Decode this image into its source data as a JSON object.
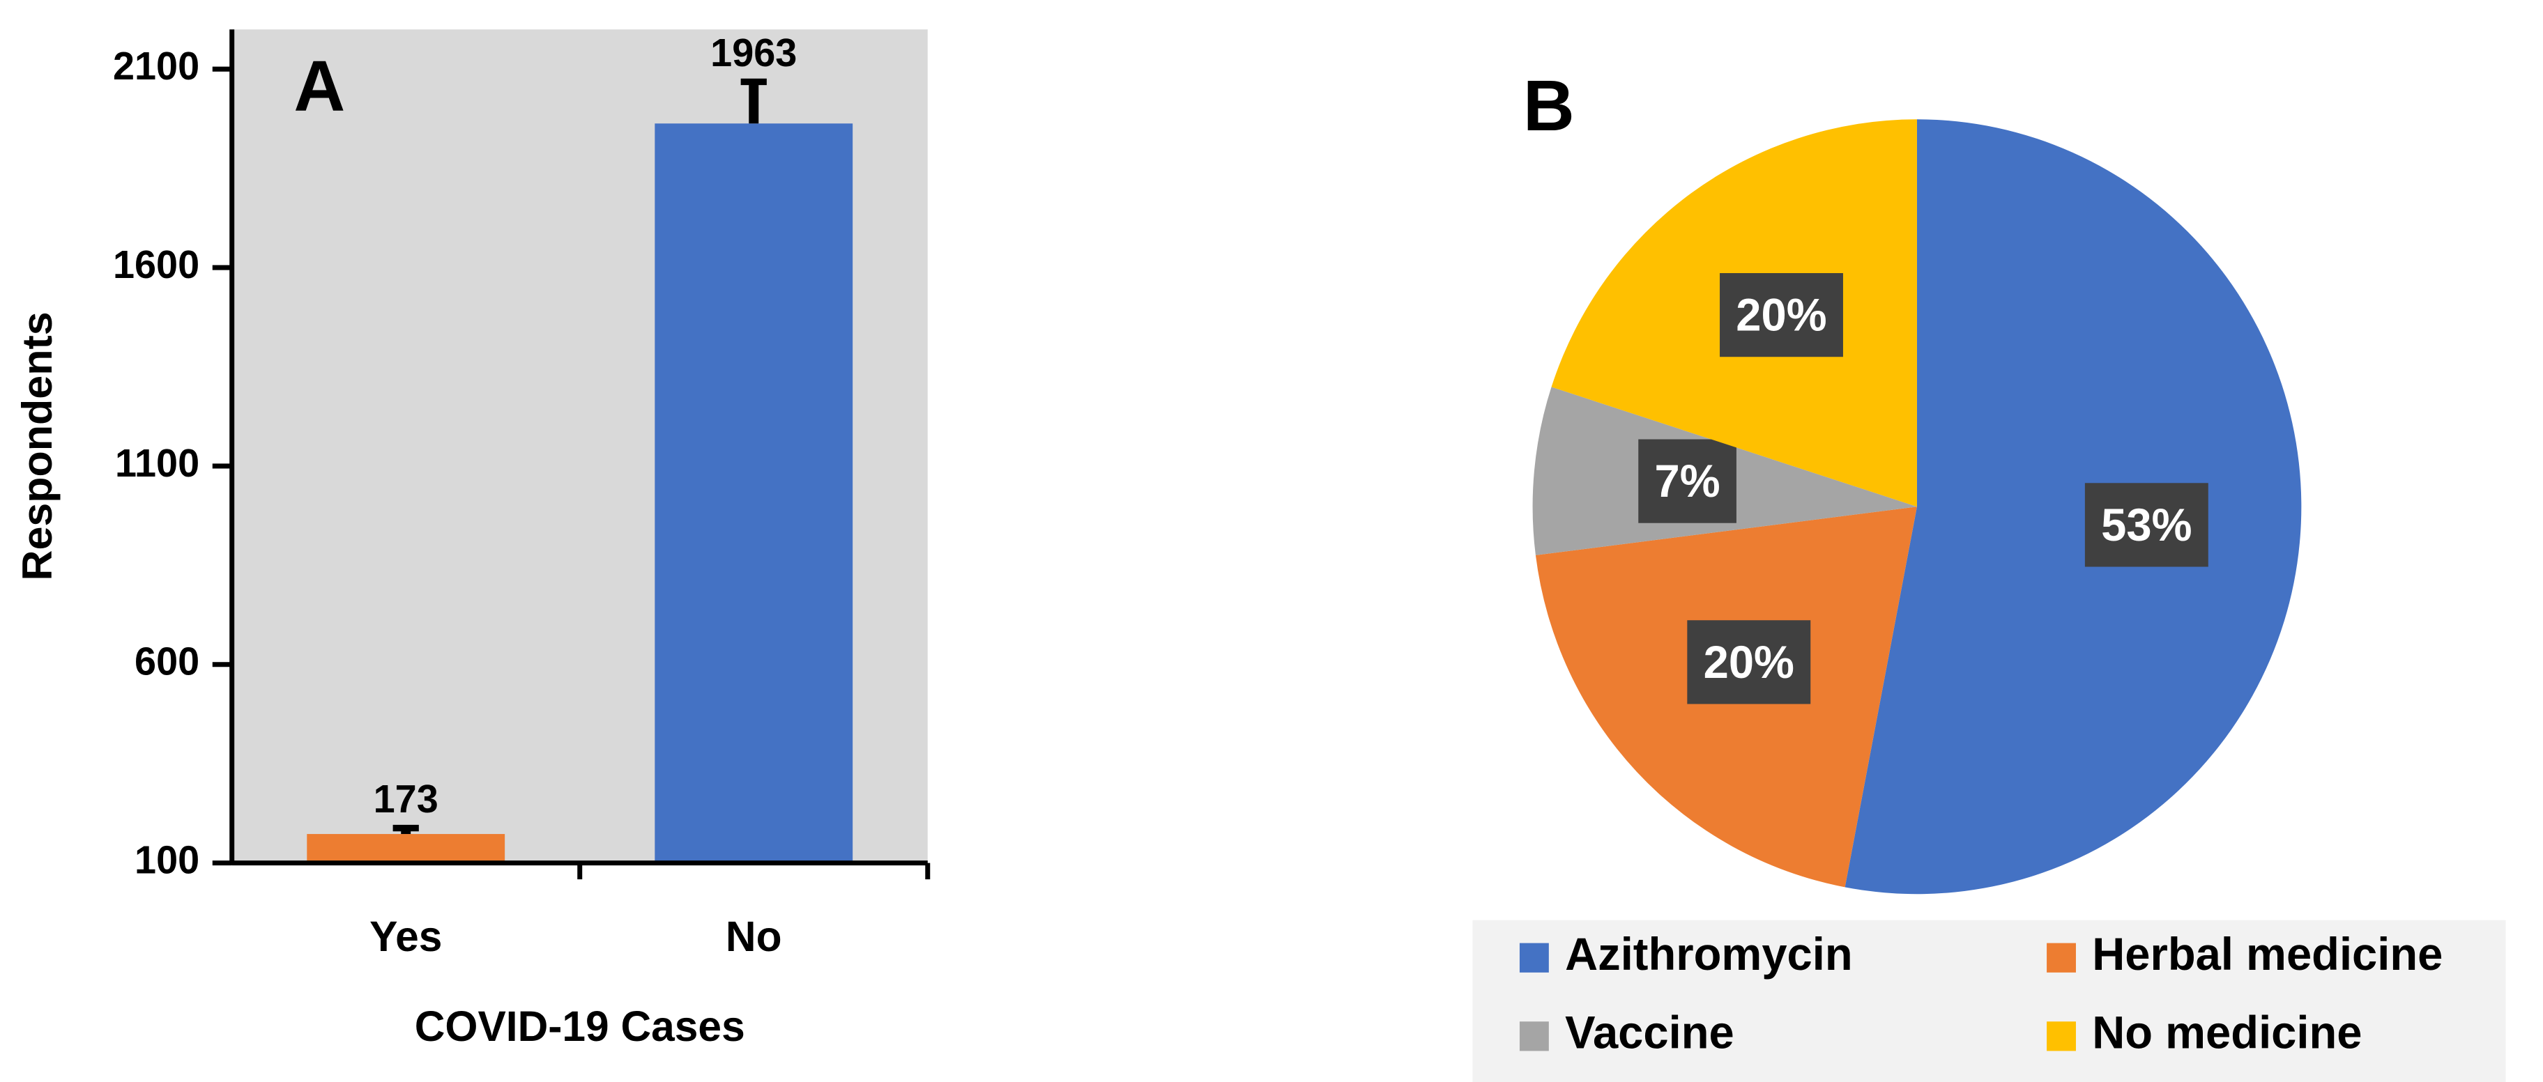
{
  "chart_data": [
    {
      "type": "bar",
      "panel_label": "A",
      "x_label": "COVID-19 Cases",
      "y_label": "Respondents",
      "categories": [
        "Yes",
        "No"
      ],
      "values": [
        173,
        1963
      ],
      "errors": [
        15,
        105
      ],
      "colors": [
        "#ed7d31",
        "#4472c4"
      ],
      "ylim": [
        100,
        2200
      ],
      "yticks": [
        100,
        600,
        1100,
        1600,
        2100
      ],
      "background": "#d9d9d9"
    },
    {
      "type": "pie",
      "panel_label": "B",
      "categories": [
        "Azithromycin",
        "Herbal medicine",
        "Vaccine",
        "No medicine"
      ],
      "values": [
        53,
        20,
        7,
        20
      ],
      "value_labels": [
        "53%",
        "20%",
        "7%",
        "20%"
      ],
      "colors": [
        "#4472c4",
        "#ed7d31",
        "#a5a5a5",
        "#ffc000"
      ],
      "legend": "bottom"
    }
  ]
}
